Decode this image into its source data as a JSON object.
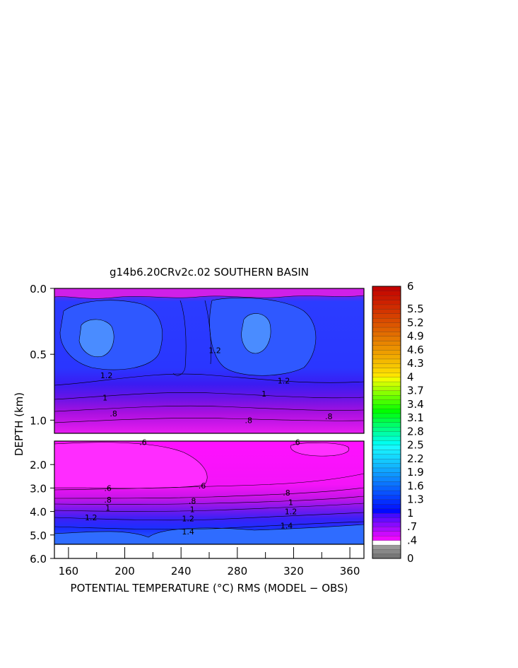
{
  "chart_data": {
    "type": "heatmap",
    "title": "g14b6.20CRv2c.02 SOUTHERN BASIN",
    "xlabel": "POTENTIAL TEMPERATURE (°C) RMS (MODEL − OBS)",
    "ylabel": "DEPTH (km)",
    "xlim": [
      150,
      370
    ],
    "x_ticks": [
      160,
      200,
      240,
      280,
      320,
      360
    ],
    "upper_panel": {
      "ylim": [
        0.0,
        1.1
      ],
      "y_ticks": [
        "0.0",
        "0.5",
        "1.0"
      ],
      "y_values": [
        0.0,
        0.5,
        1.0
      ]
    },
    "lower_panel": {
      "ylim": [
        1.0,
        6.0
      ],
      "y_ticks": [
        "2.0",
        "3.0",
        "4.0",
        "5.0",
        "6.0"
      ],
      "y_values": [
        2.0,
        3.0,
        4.0,
        5.0,
        6.0
      ]
    },
    "colorbar": {
      "min": 0,
      "max": 6,
      "labels": [
        "0",
        ".4",
        ".7",
        "1",
        "1.3",
        "1.6",
        "1.9",
        "2.2",
        "2.5",
        "2.8",
        "3.1",
        "3.4",
        "3.7",
        "4",
        "4.3",
        "4.6",
        "4.9",
        "5.2",
        "5.5",
        "6"
      ],
      "label_values": [
        0,
        0.4,
        0.7,
        1.0,
        1.3,
        1.6,
        1.9,
        2.2,
        2.5,
        2.8,
        3.1,
        3.4,
        3.7,
        4.0,
        4.3,
        4.6,
        4.9,
        5.2,
        5.5,
        6.0
      ]
    },
    "contour_labels_upper": [
      {
        "text": "1.2",
        "x": 187,
        "depth": 0.66
      },
      {
        "text": "1",
        "x": 186,
        "depth": 0.83
      },
      {
        "text": "1",
        "x": 299,
        "depth": 0.8
      },
      {
        "text": ".8",
        "x": 192,
        "depth": 0.95
      },
      {
        "text": ".8",
        "x": 288,
        "depth": 1.0
      },
      {
        "text": ".8",
        "x": 345,
        "depth": 0.97
      },
      {
        "text": "1.2",
        "x": 313,
        "depth": 0.7
      },
      {
        "text": "1.2",
        "x": 264,
        "depth": 0.47
      }
    ],
    "contour_labels_lower": [
      {
        "text": ".6",
        "x": 213,
        "depth": 1.04
      },
      {
        "text": ".6",
        "x": 322,
        "depth": 1.04
      },
      {
        "text": ".6",
        "x": 188,
        "depth": 3.0
      },
      {
        "text": ".6",
        "x": 255,
        "depth": 2.9
      },
      {
        "text": ".8",
        "x": 188,
        "depth": 3.5
      },
      {
        "text": ".8",
        "x": 248,
        "depth": 3.55
      },
      {
        "text": ".8",
        "x": 315,
        "depth": 3.2
      },
      {
        "text": "1",
        "x": 188,
        "depth": 3.85
      },
      {
        "text": "1",
        "x": 248,
        "depth": 3.9
      },
      {
        "text": "1",
        "x": 318,
        "depth": 3.6
      },
      {
        "text": "1.2",
        "x": 176,
        "depth": 4.25
      },
      {
        "text": "1.2",
        "x": 245,
        "depth": 4.3
      },
      {
        "text": "1.2",
        "x": 318,
        "depth": 4.0
      },
      {
        "text": "1.4",
        "x": 245,
        "depth": 4.85
      },
      {
        "text": "1.4",
        "x": 315,
        "depth": 4.6
      }
    ],
    "colors": {
      "ocean_low": "#ff00ff",
      "ocean_mid": "#1a1aff",
      "ocean_high": "#3b8cff",
      "missing": "#ffffff"
    }
  }
}
